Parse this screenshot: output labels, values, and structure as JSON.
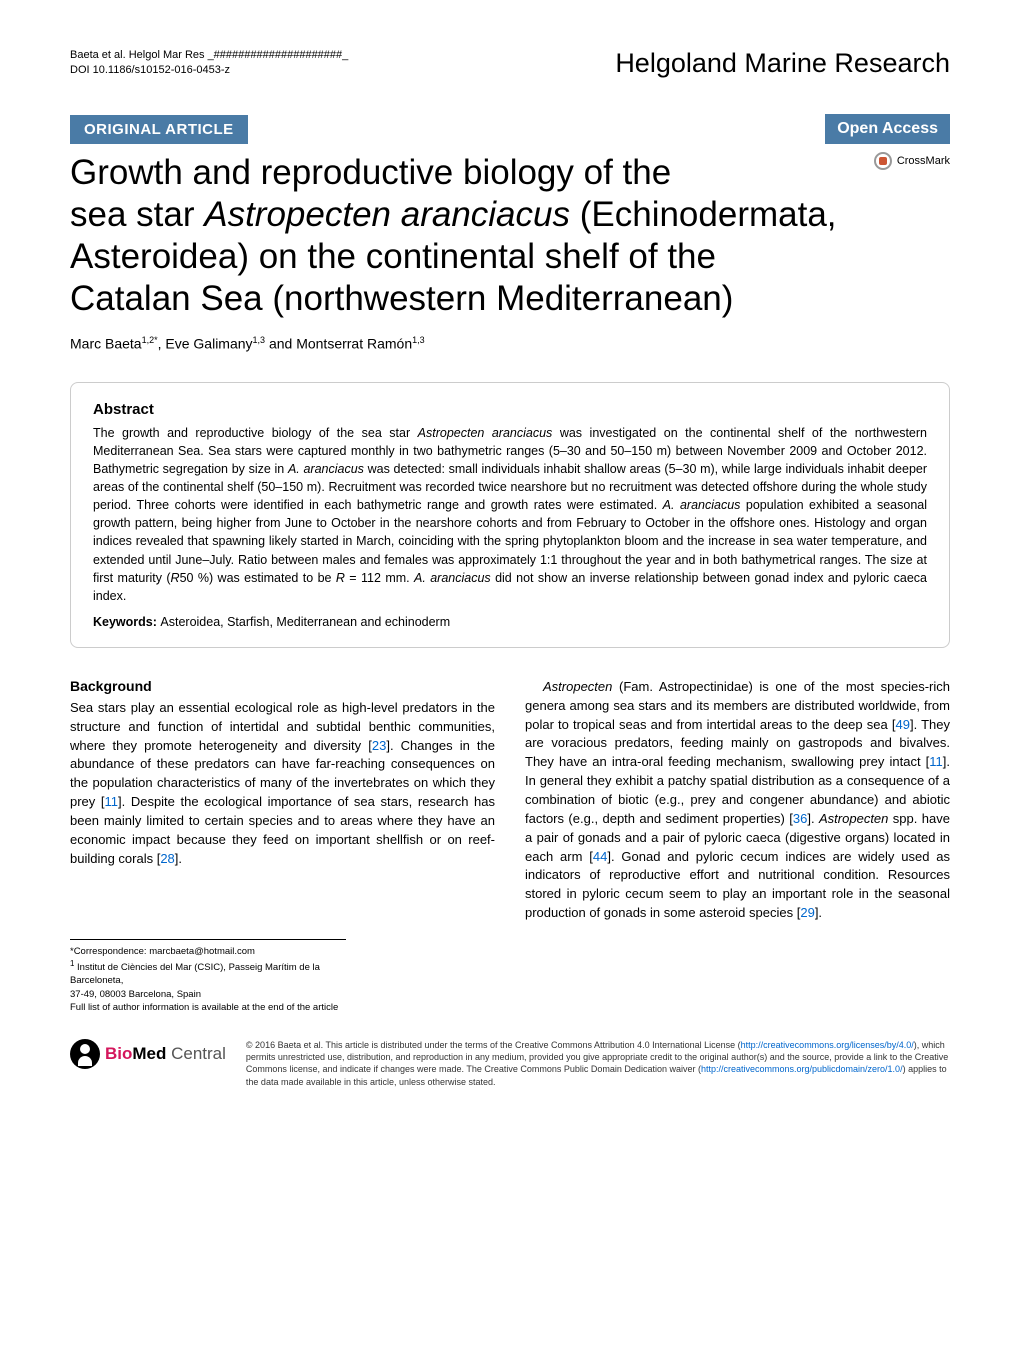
{
  "header": {
    "citation_line1": "Baeta et al. Helgol Mar Res _#####################_",
    "citation_line2": "DOI 10.1186/s10152-016-0453-z",
    "journal": "Helgoland Marine Research"
  },
  "article_bar": {
    "type": "ORIGINAL ARTICLE",
    "access": "Open Access",
    "crossmark": "CrossMark"
  },
  "title": {
    "line1": "Growth and reproductive biology of the",
    "line2a": "sea star ",
    "line2b": "Astropecten aranciacus",
    "line2c": " (Echinodermata,",
    "line3": "Asteroidea) on the continental shelf of the",
    "line4": "Catalan Sea (northwestern Mediterranean)"
  },
  "authors": {
    "a1_name": "Marc Baeta",
    "a1_aff": "1,2*",
    "a2_name": ", Eve Galimany",
    "a2_aff": "1,3",
    "a3_name": " and Montserrat Ramón",
    "a3_aff": "1,3"
  },
  "abstract": {
    "heading": "Abstract",
    "text1": "The growth and reproductive biology of the sea star ",
    "italic1": "Astropecten aranciacus",
    "text2": " was investigated on the continental shelf of the northwestern Mediterranean Sea. Sea stars were captured monthly in two bathymetric ranges (5–30 and 50–150 m) between November 2009 and October 2012. Bathymetric segregation by size in ",
    "italic2": "A. aranciacus",
    "text3": " was detected: small individuals inhabit shallow areas (5–30 m), while large individuals inhabit deeper areas of the continental shelf (50–150 m). Recruitment was recorded twice nearshore but no recruitment was detected offshore during the whole study period. Three cohorts were identified in each bathymetric range and growth rates were estimated. ",
    "italic3": "A. aranciacus",
    "text4": " population exhibited a seasonal growth pattern, being higher from June to October in the nearshore cohorts and from February to October in the offshore ones. Histology and organ indices revealed that spawning likely started in March, coinciding with the spring phytoplankton bloom and the increase in sea water temperature, and extended until June–July. Ratio between males and females was approximately 1:1 throughout the year and in both bathymetrical ranges. The size at first maturity (",
    "italic4": "R",
    "text5": "50 %) was estimated to be ",
    "italic5": "R",
    "text6": " = 112 mm. ",
    "italic6": "A. aranciacus",
    "text7": " did not show an inverse relationship between gonad index and pyloric caeca index.",
    "keywords_label": "Keywords: ",
    "keywords_text": "Asteroidea, Starfish, Mediterranean and echinoderm"
  },
  "background": {
    "heading": "Background",
    "p1a": "Sea stars play an essential ecological role as high-level predators in the structure and function of intertidal and subtidal benthic communities, where they promote heterogeneity and diversity [",
    "ref1": "23",
    "p1b": "]. Changes in the abundance of these predators can have far-reaching consequences on the population characteristics of many of the invertebrates on which they prey [",
    "ref2": "11",
    "p1c": "]. Despite the ecological importance of sea stars, research has been mainly limited to certain species and to areas where they have an economic impact because they feed on important shellfish or on reef-building corals [",
    "ref3": "28",
    "p1d": "]."
  },
  "col2": {
    "p1a": "Astropecten",
    "p1b": " (Fam. Astropectinidae) is one of the most species-rich genera among sea stars and its members are distributed worldwide, from polar to tropical seas and from intertidal areas to the deep sea [",
    "ref1": "49",
    "p1c": "]. They are voracious predators, feeding mainly on gastropods and bivalves. They have an intra-oral feeding mechanism, swallowing prey intact [",
    "ref2": "11",
    "p1d": "]. In general they exhibit a patchy spatial distribution as a consequence of a combination of biotic (e.g., prey and congener abundance) and abiotic factors (e.g., depth and sediment properties) [",
    "ref3": "36",
    "p1e": "]. ",
    "italic1": "Astropecten",
    "p1f": " spp. have a pair of gonads and a pair of pyloric caeca (digestive organs) located in each arm [",
    "ref4": "44",
    "p1g": "]. Gonad and pyloric cecum indices are widely used as indicators of reproductive effort and nutritional condition. Resources stored in pyloric cecum seem to play an important role in the seasonal production of gonads in some asteroid species [",
    "ref5": "29",
    "p1h": "]."
  },
  "correspondence": {
    "line1": "*Correspondence:  marcbaeta@hotmail.com",
    "line2_sup": "1",
    "line2": " Institut de Ciències del Mar (CSIC), Passeig Marítim de la Barceloneta,",
    "line3": "37-49, 08003 Barcelona, Spain",
    "line4": "Full list of author information is available at the end of the article"
  },
  "footer": {
    "logo_bio": "Bio",
    "logo_med": "Med",
    "logo_central": " Central",
    "license1": "© 2016 Baeta et al. This article is distributed under the terms of the Creative Commons Attribution 4.0 International License (",
    "license_url1": "http://creativecommons.org/licenses/by/4.0/",
    "license2": "), which permits unrestricted use, distribution, and reproduction in any medium, provided you give appropriate credit to the original author(s) and the source, provide a link to the Creative Commons license, and indicate if changes were made. The Creative Commons Public Domain Dedication waiver (",
    "license_url2": "http://creativecommons.org/publicdomain/zero/1.0/",
    "license3": ") applies to the data made available in this article, unless otherwise stated."
  },
  "colors": {
    "bar_bg": "#4a7ba6",
    "link": "#0066cc",
    "biomed_pink": "#d4165c"
  }
}
